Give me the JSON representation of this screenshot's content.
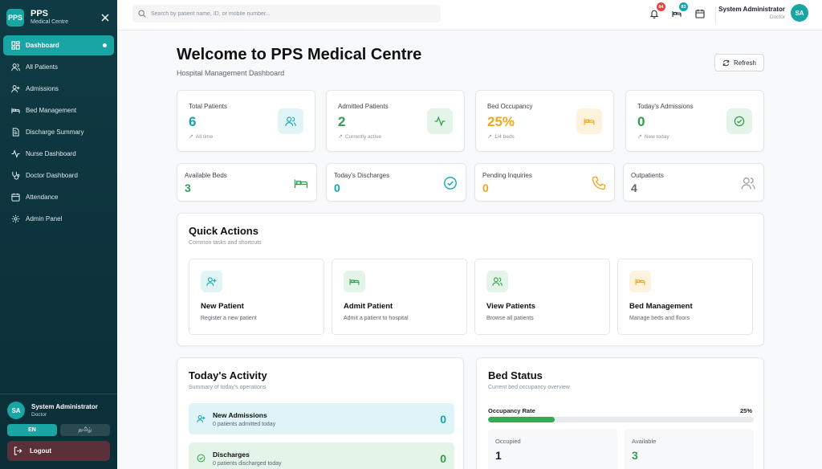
{
  "sidebar": {
    "brand_logo": "PPS",
    "brand_name": "PPS",
    "brand_sub": "Medical Centre",
    "items": [
      {
        "label": "Dashboard",
        "icon": "grid-icon"
      },
      {
        "label": "All Patients",
        "icon": "users-icon"
      },
      {
        "label": "Admissions",
        "icon": "user-plus-icon"
      },
      {
        "label": "Bed Management",
        "icon": "bed-icon"
      },
      {
        "label": "Discharge Summary",
        "icon": "document-icon"
      },
      {
        "label": "Nurse Dashboard",
        "icon": "activity-icon"
      },
      {
        "label": "Doctor Dashboard",
        "icon": "stethoscope-icon"
      },
      {
        "label": "Attendance",
        "icon": "calendar-icon"
      },
      {
        "label": "Admin Panel",
        "icon": "gear-icon"
      }
    ],
    "user": {
      "initials": "SA",
      "name": "System Administrator",
      "role": "Doctor"
    },
    "lang": {
      "en": "EN",
      "ta": "தமிழ்"
    },
    "logout_label": "Logout"
  },
  "topbar": {
    "search_placeholder": "Search by patient name, ID, or mobile number...",
    "notifications_count": "84",
    "beds_count": "83",
    "user": {
      "name": "System Administrator",
      "role": "Doctor",
      "initials": "SA"
    }
  },
  "page": {
    "title": "Welcome to PPS Medical Centre",
    "subtitle": "Hospital Management Dashboard",
    "refresh_label": "Refresh"
  },
  "stats": [
    {
      "label": "Total Patients",
      "value": "6",
      "foot": "All time",
      "color": "#12a4b3",
      "bg": "#e1f5f7",
      "icon": "users-icon"
    },
    {
      "label": "Admitted Patients",
      "value": "2",
      "foot": "Currently active",
      "color": "#2f9e4f",
      "bg": "#e4f4e8",
      "icon": "activity-icon"
    },
    {
      "label": "Bed Occupancy",
      "value": "25%",
      "foot": "1/4 beds",
      "color": "#f0a818",
      "bg": "#fdf3dc",
      "icon": "bed-icon"
    },
    {
      "label": "Today's Admissions",
      "value": "0",
      "foot": "New today",
      "color": "#2f9e4f",
      "bg": "#e4f4e8",
      "icon": "check-circle-icon"
    }
  ],
  "mini_stats": [
    {
      "label": "Available Beds",
      "value": "3",
      "color": "#2f9e4f",
      "icon": "bed-icon"
    },
    {
      "label": "Today's Discharges",
      "value": "0",
      "color": "#12a4b3",
      "icon": "check-circle-icon"
    },
    {
      "label": "Pending Inquiries",
      "value": "0",
      "color": "#f0a818",
      "icon": "phone-icon"
    },
    {
      "label": "Outpatients",
      "value": "4",
      "color": "#5b6470",
      "icon": "users-icon"
    }
  ],
  "quick_actions": {
    "title": "Quick Actions",
    "subtitle": "Common tasks and shortcuts",
    "items": [
      {
        "title": "New Patient",
        "desc": "Register a new patient",
        "color": "#12a4b3",
        "bg": "#e1f5f7",
        "icon": "user-plus-icon"
      },
      {
        "title": "Admit Patient",
        "desc": "Admit a patient to hospital",
        "color": "#2f9e4f",
        "bg": "#e4f4e8",
        "icon": "bed-icon"
      },
      {
        "title": "View Patients",
        "desc": "Browse all patients",
        "color": "#2f9e4f",
        "bg": "#e4f4e8",
        "icon": "users-icon"
      },
      {
        "title": "Bed Management",
        "desc": "Manage beds and floors",
        "color": "#f0a818",
        "bg": "#fdf3dc",
        "icon": "bed-icon"
      }
    ]
  },
  "activity": {
    "title": "Today's Activity",
    "subtitle": "Summary of today's operations",
    "rows": [
      {
        "title": "New Admissions",
        "desc": "0 patients admitted today",
        "value": "0",
        "color": "#12a4b3",
        "bg": "#def4f7",
        "icon": "user-plus-icon"
      },
      {
        "title": "Discharges",
        "desc": "0 patients discharged today",
        "value": "0",
        "color": "#2f9e4f",
        "bg": "#e4f4e8",
        "icon": "check-circle-icon"
      }
    ]
  },
  "bed_status": {
    "title": "Bed Status",
    "subtitle": "Current bed occupancy overview",
    "occupancy_label": "Occupancy Rate",
    "occupancy_value": "25%",
    "occupancy_fraction": 0.25,
    "occupied_label": "Occupied",
    "occupied_value": "1",
    "available_label": "Available",
    "available_value": "3"
  }
}
